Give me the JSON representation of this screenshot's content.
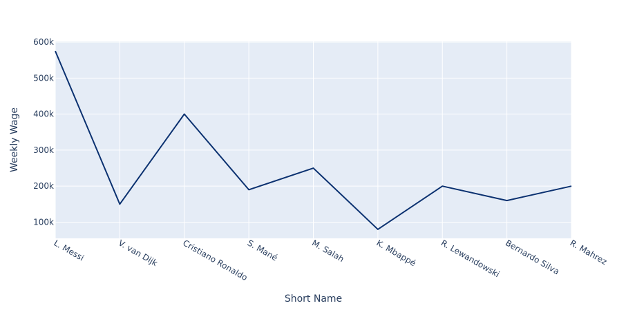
{
  "chart_data": {
    "type": "line",
    "title": "",
    "xlabel": "Short Name",
    "ylabel": "Weekly Wage",
    "categories": [
      "L. Messi",
      "V. van Dijk",
      "Cristiano Ronaldo",
      "S. Mané",
      "M. Salah",
      "K. Mbappé",
      "R. Lewandowski",
      "Bernardo Silva",
      "R. Mahrez"
    ],
    "series": [
      {
        "values": [
          575000,
          150000,
          400000,
          190000,
          250000,
          80000,
          200000,
          160000,
          200000
        ]
      }
    ],
    "ylim": [
      55000,
      602000
    ],
    "yticks": [
      100000,
      200000,
      300000,
      400000,
      500000,
      600000
    ],
    "ytick_labels": [
      "100k",
      "200k",
      "300k",
      "400k",
      "500k",
      "600k"
    ],
    "grid": true,
    "colors": {
      "plot_background": "#E5ECF6",
      "grid": "#ffffff",
      "line": "#0b3170",
      "text": "#2a3f5f"
    }
  }
}
